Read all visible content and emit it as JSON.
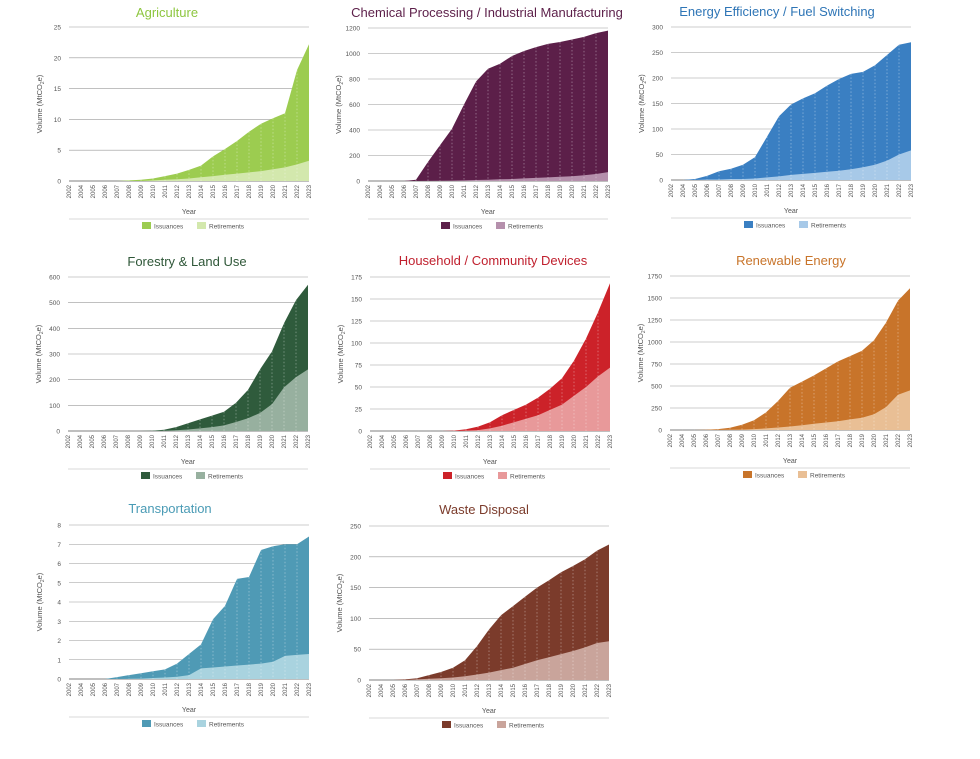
{
  "legend_labels": {
    "issuances": "Issuances",
    "retirements": "Retirements"
  },
  "chart_data": [
    {
      "type": "area",
      "title": "Agriculture",
      "xlabel": "Year",
      "ylabel": "Volume (MtCO2e)",
      "ylabel_parts": {
        "main": "Volume (MtCO",
        "sub": "2",
        "end": "e)"
      },
      "legend": "bottom",
      "grid": true,
      "colors": {
        "title": "#8dc63f",
        "issuances": "#9ccc50",
        "retirements": "#d3e8ad"
      },
      "ylim": [
        0,
        25
      ],
      "yticks": [
        0,
        5,
        10,
        15,
        20,
        25
      ],
      "categories": [
        "2002",
        "2004",
        "2005",
        "2006",
        "2007",
        "2008",
        "2009",
        "2010",
        "2011",
        "2012",
        "2013",
        "2014",
        "2015",
        "2016",
        "2017",
        "2018",
        "2019",
        "2020",
        "2021",
        "2022",
        "2023"
      ],
      "series": [
        {
          "name": "Issuances",
          "values": [
            0,
            0,
            0,
            0,
            0,
            0.1,
            0.2,
            0.4,
            0.8,
            1.2,
            1.8,
            2.5,
            4,
            5.2,
            6.5,
            8,
            9.3,
            10.2,
            11,
            18,
            22.2
          ]
        },
        {
          "name": "Retirements",
          "values": [
            0,
            0,
            0,
            0,
            0,
            0,
            0,
            0.1,
            0.2,
            0.3,
            0.4,
            0.6,
            0.8,
            1,
            1.2,
            1.4,
            1.6,
            1.9,
            2.2,
            2.7,
            3.3
          ]
        }
      ]
    },
    {
      "type": "area",
      "title": "Chemical Processing / Industrial Manufacturing",
      "xlabel": "Year",
      "ylabel": "Volume (MtCO2e)",
      "ylabel_parts": {
        "main": "Volume (MtCO",
        "sub": "2",
        "end": "e)"
      },
      "legend": "bottom",
      "grid": true,
      "colors": {
        "title": "#5c1f49",
        "issuances": "#5c1f49",
        "retirements": "#b590ac"
      },
      "ylim": [
        0,
        1200
      ],
      "yticks": [
        0,
        200,
        400,
        600,
        800,
        1000,
        1200
      ],
      "categories": [
        "2002",
        "2004",
        "2005",
        "2006",
        "2007",
        "2008",
        "2009",
        "2010",
        "2011",
        "2012",
        "2013",
        "2014",
        "2015",
        "2016",
        "2017",
        "2018",
        "2019",
        "2020",
        "2021",
        "2022",
        "2023"
      ],
      "series": [
        {
          "name": "Issuances",
          "values": [
            0,
            0,
            0,
            0,
            10,
            150,
            280,
            410,
            600,
            780,
            880,
            920,
            980,
            1020,
            1050,
            1075,
            1090,
            1110,
            1130,
            1160,
            1180
          ]
        },
        {
          "name": "Retirements",
          "values": [
            0,
            0,
            0,
            0,
            0,
            1,
            2,
            3,
            5,
            8,
            10,
            13,
            16,
            20,
            24,
            28,
            33,
            38,
            45,
            55,
            70
          ]
        }
      ]
    },
    {
      "type": "area",
      "title": "Energy Efficiency / Fuel Switching",
      "xlabel": "Year",
      "ylabel": "Volume (MtCO2e)",
      "ylabel_parts": {
        "main": "Volume (MtCO",
        "sub": "2",
        "end": "e)"
      },
      "legend": "bottom",
      "grid": true,
      "colors": {
        "title": "#2e75b6",
        "issuances": "#3a7fc2",
        "retirements": "#a7c9e8"
      },
      "ylim": [
        0,
        300
      ],
      "yticks": [
        0,
        50,
        100,
        150,
        200,
        250,
        300
      ],
      "categories": [
        "2002",
        "2004",
        "2005",
        "2006",
        "2007",
        "2008",
        "2009",
        "2010",
        "2011",
        "2012",
        "2013",
        "2014",
        "2015",
        "2016",
        "2017",
        "2018",
        "2019",
        "2020",
        "2021",
        "2022",
        "2023"
      ],
      "series": [
        {
          "name": "Issuances",
          "values": [
            0,
            0,
            2,
            8,
            17,
            22,
            30,
            45,
            85,
            125,
            148,
            160,
            170,
            185,
            198,
            208,
            212,
            225,
            245,
            265,
            270
          ]
        },
        {
          "name": "Retirements",
          "values": [
            0,
            0,
            0,
            1,
            1,
            2,
            2,
            3,
            5,
            7,
            10,
            12,
            14,
            16,
            18,
            21,
            25,
            30,
            38,
            50,
            58
          ]
        }
      ]
    },
    {
      "type": "area",
      "title": "Forestry & Land Use",
      "xlabel": "Year",
      "ylabel": "Volume (MtCO2e)",
      "ylabel_parts": {
        "main": "Volume (MtCO",
        "sub": "2",
        "end": "e)"
      },
      "legend": "bottom",
      "grid": true,
      "colors": {
        "title": "#2f5738",
        "issuances": "#2f5b3c",
        "retirements": "#97b09f"
      },
      "ylim": [
        0,
        600
      ],
      "yticks": [
        0,
        100,
        200,
        300,
        400,
        500,
        600
      ],
      "categories": [
        "2002",
        "2004",
        "2005",
        "2006",
        "2007",
        "2008",
        "2009",
        "2010",
        "2011",
        "2012",
        "2013",
        "2014",
        "2015",
        "2016",
        "2017",
        "2018",
        "2019",
        "2020",
        "2021",
        "2022",
        "2023"
      ],
      "series": [
        {
          "name": "Issuances",
          "values": [
            0,
            0,
            0,
            0,
            0,
            0,
            0,
            1,
            5,
            15,
            30,
            45,
            60,
            75,
            110,
            160,
            240,
            310,
            420,
            510,
            570
          ]
        },
        {
          "name": "Retirements",
          "values": [
            0,
            0,
            0,
            0,
            0,
            0,
            0,
            0,
            1,
            3,
            6,
            10,
            15,
            22,
            35,
            50,
            70,
            105,
            170,
            210,
            240
          ]
        }
      ]
    },
    {
      "type": "area",
      "title": "Household / Community Devices",
      "xlabel": "Year",
      "ylabel": "Volume (MtCO2e)",
      "ylabel_parts": {
        "main": "Volume (MtCO",
        "sub": "2",
        "end": "e)"
      },
      "legend": "bottom",
      "grid": true,
      "colors": {
        "title": "#c0202e",
        "issuances": "#cc2229",
        "retirements": "#e8999a"
      },
      "ylim": [
        0,
        175
      ],
      "yticks": [
        0,
        25,
        50,
        75,
        100,
        125,
        150,
        175
      ],
      "categories": [
        "2002",
        "2004",
        "2005",
        "2006",
        "2007",
        "2008",
        "2009",
        "2010",
        "2011",
        "2012",
        "2013",
        "2014",
        "2015",
        "2016",
        "2017",
        "2018",
        "2019",
        "2020",
        "2021",
        "2022",
        "2023"
      ],
      "series": [
        {
          "name": "Issuances",
          "values": [
            0,
            0,
            0,
            0,
            0,
            0,
            0,
            0.5,
            2,
            5,
            10,
            18,
            24,
            30,
            38,
            48,
            60,
            80,
            105,
            135,
            168
          ]
        },
        {
          "name": "Retirements",
          "values": [
            0,
            0,
            0,
            0,
            0,
            0,
            0,
            0,
            0.5,
            1,
            3,
            6,
            10,
            14,
            18,
            24,
            30,
            40,
            50,
            62,
            72
          ]
        }
      ]
    },
    {
      "type": "area",
      "title": "Renewable Energy",
      "xlabel": "Year",
      "ylabel": "Volume (MtCO2e)",
      "ylabel_parts": {
        "main": "Volume (MtCO",
        "sub": "2",
        "end": "e)"
      },
      "legend": "bottom",
      "grid": true,
      "colors": {
        "title": "#c8742a",
        "issuances": "#c8742a",
        "retirements": "#e9bf95"
      },
      "ylim": [
        0,
        1750
      ],
      "yticks": [
        0,
        250,
        500,
        750,
        1000,
        1250,
        1500,
        1750
      ],
      "categories": [
        "2002",
        "2004",
        "2005",
        "2006",
        "2007",
        "2008",
        "2009",
        "2010",
        "2011",
        "2012",
        "2013",
        "2014",
        "2015",
        "2016",
        "2017",
        "2018",
        "2019",
        "2020",
        "2021",
        "2022",
        "2023"
      ],
      "series": [
        {
          "name": "Issuances",
          "values": [
            0,
            0,
            0,
            2,
            10,
            25,
            60,
            110,
            200,
            330,
            480,
            550,
            620,
            700,
            780,
            840,
            900,
            1020,
            1220,
            1470,
            1610
          ]
        },
        {
          "name": "Retirements",
          "values": [
            0,
            0,
            0,
            0,
            1,
            2,
            5,
            10,
            18,
            28,
            40,
            55,
            70,
            85,
            100,
            120,
            140,
            180,
            260,
            400,
            450
          ]
        }
      ]
    },
    {
      "type": "area",
      "title": "Transportation",
      "xlabel": "Year",
      "ylabel": "Volume (MtCO2e)",
      "ylabel_parts": {
        "main": "Volume (MtCO",
        "sub": "2",
        "end": "e)"
      },
      "legend": "bottom",
      "grid": true,
      "colors": {
        "title": "#4a9bb5",
        "issuances": "#4f9ab5",
        "retirements": "#a9d3df"
      },
      "ylim": [
        0,
        8
      ],
      "yticks": [
        0,
        1,
        2,
        3,
        4,
        5,
        6,
        7,
        8
      ],
      "categories": [
        "2002",
        "2004",
        "2005",
        "2006",
        "2007",
        "2008",
        "2009",
        "2010",
        "2011",
        "2012",
        "2013",
        "2014",
        "2015",
        "2016",
        "2017",
        "2018",
        "2019",
        "2020",
        "2021",
        "2022",
        "2023"
      ],
      "series": [
        {
          "name": "Issuances",
          "values": [
            0,
            0,
            0,
            0,
            0.1,
            0.2,
            0.3,
            0.4,
            0.5,
            0.8,
            1.3,
            1.8,
            3.1,
            3.8,
            5.2,
            5.3,
            6.7,
            6.9,
            7,
            7,
            7.4
          ]
        },
        {
          "name": "Retirements",
          "values": [
            0,
            0,
            0,
            0,
            0,
            0.01,
            0.02,
            0.05,
            0.08,
            0.12,
            0.2,
            0.55,
            0.6,
            0.65,
            0.7,
            0.75,
            0.8,
            0.9,
            1.2,
            1.25,
            1.3
          ]
        }
      ]
    },
    {
      "type": "area",
      "title": "Waste Disposal",
      "xlabel": "Year",
      "ylabel": "Volume (MtCO2e)",
      "ylabel_parts": {
        "main": "Volume (MtCO",
        "sub": "2",
        "end": "e)"
      },
      "legend": "bottom",
      "grid": true,
      "colors": {
        "title": "#7b3b2b",
        "issuances": "#7b3b2b",
        "retirements": "#c9a49b"
      },
      "ylim": [
        0,
        250
      ],
      "yticks": [
        0,
        50,
        100,
        150,
        200,
        250
      ],
      "categories": [
        "2002",
        "2004",
        "2005",
        "2006",
        "2007",
        "2008",
        "2009",
        "2010",
        "2011",
        "2012",
        "2013",
        "2014",
        "2015",
        "2016",
        "2017",
        "2018",
        "2019",
        "2020",
        "2021",
        "2022",
        "2023"
      ],
      "series": [
        {
          "name": "Issuances",
          "values": [
            0,
            0,
            0,
            1,
            3,
            8,
            13,
            20,
            32,
            55,
            82,
            105,
            120,
            135,
            150,
            162,
            175,
            185,
            196,
            210,
            220
          ]
        },
        {
          "name": "Retirements",
          "values": [
            0,
            0,
            0,
            0,
            1,
            2,
            3,
            4,
            6,
            9,
            12,
            16,
            20,
            26,
            32,
            37,
            42,
            47,
            53,
            60,
            63
          ]
        }
      ]
    }
  ]
}
